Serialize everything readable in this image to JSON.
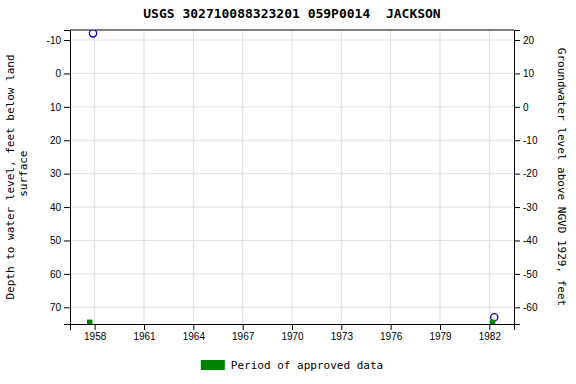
{
  "chart_data": {
    "type": "scatter",
    "title": "USGS 302710088323201 059P0014  JACKSON",
    "ylabel": "Depth to water level, feet below land\n surface",
    "y2label": "Groundwater level above NGVD 1929, feet",
    "xlim": [
      1956.5,
      1983.5
    ],
    "xticks": [
      1958,
      1961,
      1964,
      1967,
      1970,
      1973,
      1976,
      1979,
      1982
    ],
    "ylim": [
      75,
      -13
    ],
    "yticks": [
      -10,
      0,
      10,
      20,
      30,
      40,
      50,
      60,
      70
    ],
    "y2lim": [
      -65,
      23
    ],
    "y2ticks": [
      20,
      10,
      0,
      -10,
      -20,
      -30,
      -40,
      -50,
      -60
    ],
    "grid": true,
    "legend": "bottom",
    "series": [
      {
        "x": [
          1957.9,
          1982.3
        ],
        "values": [
          -12.0,
          73.0
        ],
        "color": "#0000cc",
        "marker": "open-circle"
      },
      {
        "name": "Period of approved data",
        "x": [
          1957.7,
          1982.2
        ],
        "values": [
          74.5,
          74.5
        ],
        "color": "#008000",
        "marker": "square"
      }
    ]
  }
}
